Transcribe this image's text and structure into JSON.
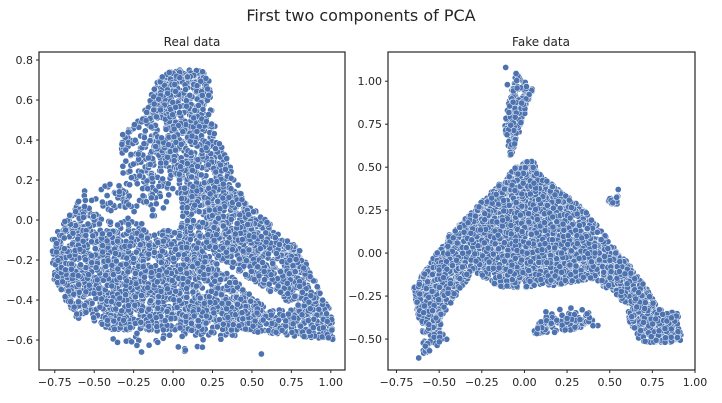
{
  "title": "First two components of PCA",
  "chart_data": [
    {
      "type": "scatter",
      "title": "Real data",
      "xlabel": "",
      "ylabel": "",
      "xlim": [
        -0.85,
        1.09
      ],
      "ylim": [
        -0.75,
        0.84
      ],
      "xticks": [
        -0.75,
        -0.5,
        -0.25,
        0.0,
        0.25,
        0.5,
        0.75,
        1.0
      ],
      "xtick_labels": [
        "−0.75",
        "−0.50",
        "−0.25",
        "0.00",
        "0.25",
        "0.50",
        "0.75",
        "1.00"
      ],
      "yticks": [
        -0.6,
        -0.4,
        -0.2,
        0.0,
        0.2,
        0.4,
        0.6,
        0.8
      ],
      "ytick_labels": [
        "−0.6",
        "−0.4",
        "−0.2",
        "0.0",
        "0.2",
        "0.4",
        "0.6",
        "0.8"
      ],
      "grid": false,
      "point_color": "#4c72b0",
      "regions": [
        {
          "points": [
            [
              -0.77,
              -0.1
            ],
            [
              -0.6,
              0.1
            ],
            [
              -0.45,
              0.0
            ],
            [
              -0.45,
              -0.35
            ],
            [
              -0.6,
              -0.5
            ],
            [
              -0.76,
              -0.3
            ]
          ],
          "density": 0.95
        },
        {
          "points": [
            [
              -0.62,
              -0.25
            ],
            [
              -0.55,
              -0.05
            ],
            [
              0.05,
              -0.05
            ],
            [
              0.6,
              -0.45
            ],
            [
              1.0,
              -0.45
            ],
            [
              1.02,
              -0.6
            ],
            [
              0.4,
              -0.55
            ],
            [
              -0.4,
              -0.55
            ],
            [
              -0.62,
              -0.45
            ]
          ],
          "density": 0.95
        },
        {
          "points": [
            [
              -0.1,
              0.7
            ],
            [
              0.0,
              0.75
            ],
            [
              0.22,
              0.75
            ],
            [
              0.25,
              0.55
            ],
            [
              0.05,
              0.2
            ],
            [
              -0.1,
              0.3
            ],
            [
              -0.18,
              0.55
            ]
          ],
          "density": 0.95
        },
        {
          "points": [
            [
              0.05,
              0.3
            ],
            [
              0.25,
              0.5
            ],
            [
              0.45,
              0.1
            ],
            [
              0.8,
              -0.15
            ],
            [
              1.0,
              -0.45
            ],
            [
              0.8,
              -0.45
            ],
            [
              0.3,
              -0.2
            ],
            [
              0.05,
              -0.05
            ]
          ],
          "density": 0.85
        },
        {
          "points": [
            [
              -0.32,
              0.45
            ],
            [
              -0.1,
              0.55
            ],
            [
              0.1,
              0.2
            ],
            [
              -0.1,
              0.0
            ],
            [
              -0.35,
              0.1
            ]
          ],
          "density": 0.35
        },
        {
          "points": [
            [
              -0.6,
              0.15
            ],
            [
              -0.3,
              0.2
            ],
            [
              -0.1,
              -0.2
            ],
            [
              -0.4,
              -0.3
            ]
          ],
          "density": 0.25
        },
        {
          "points": [
            [
              -0.45,
              -0.6
            ],
            [
              0.1,
              -0.5
            ],
            [
              0.55,
              -0.55
            ],
            [
              0.0,
              -0.68
            ],
            [
              -0.3,
              -0.62
            ]
          ],
          "density": 0.2
        }
      ],
      "extra_points": [
        [
          -0.2,
          -0.66
        ],
        [
          0.56,
          -0.67
        ],
        [
          -0.12,
          0.58
        ],
        [
          -0.3,
          0.35
        ],
        [
          0.12,
          0.42
        ]
      ],
      "seed": 11,
      "n_points": 4200
    },
    {
      "type": "scatter",
      "title": "Fake data",
      "xlabel": "",
      "ylabel": "",
      "xlim": [
        -0.8,
        1.0
      ],
      "ylim": [
        -0.68,
        1.17
      ],
      "xticks": [
        -0.75,
        -0.5,
        -0.25,
        0.0,
        0.25,
        0.5,
        0.75,
        1.0
      ],
      "xtick_labels": [
        "−0.75",
        "−0.50",
        "−0.25",
        "0.00",
        "0.25",
        "0.50",
        "0.75",
        "1.00"
      ],
      "yticks": [
        -0.5,
        -0.25,
        0.0,
        0.25,
        0.5,
        0.75,
        1.0
      ],
      "ytick_labels": [
        "−0.50",
        "−0.25",
        "0.00",
        "0.25",
        "0.50",
        "0.75",
        "1.00"
      ],
      "grid": false,
      "point_color": "#4c72b0",
      "regions": [
        {
          "points": [
            [
              -0.65,
              -0.2
            ],
            [
              -0.45,
              0.1
            ],
            [
              -0.2,
              0.35
            ],
            [
              -0.05,
              0.5
            ],
            [
              0.05,
              0.55
            ],
            [
              0.1,
              0.45
            ],
            [
              0.35,
              0.25
            ],
            [
              0.6,
              -0.05
            ],
            [
              0.82,
              -0.35
            ],
            [
              0.92,
              -0.48
            ],
            [
              0.75,
              -0.5
            ],
            [
              0.55,
              -0.25
            ],
            [
              0.4,
              -0.15
            ],
            [
              0.1,
              -0.2
            ],
            [
              -0.15,
              -0.2
            ],
            [
              -0.3,
              -0.1
            ],
            [
              -0.4,
              -0.25
            ],
            [
              -0.55,
              -0.45
            ],
            [
              -0.62,
              -0.4
            ]
          ],
          "density": 0.97
        },
        {
          "points": [
            [
              -0.08,
              0.55
            ],
            [
              0.05,
              0.95
            ],
            [
              -0.05,
              1.05
            ],
            [
              -0.12,
              0.75
            ]
          ],
          "density": 0.75
        },
        {
          "points": [
            [
              0.6,
              -0.3
            ],
            [
              0.9,
              -0.35
            ],
            [
              0.92,
              -0.52
            ],
            [
              0.68,
              -0.52
            ],
            [
              0.62,
              -0.42
            ]
          ],
          "density": 0.9
        },
        {
          "points": [
            [
              0.08,
              -0.35
            ],
            [
              0.35,
              -0.3
            ],
            [
              0.45,
              -0.42
            ],
            [
              0.05,
              -0.48
            ]
          ],
          "density": 0.35
        },
        {
          "points": [
            [
              -0.6,
              -0.45
            ],
            [
              -0.5,
              -0.35
            ],
            [
              -0.45,
              -0.5
            ],
            [
              -0.6,
              -0.6
            ]
          ],
          "density": 0.4
        },
        {
          "points": [
            [
              0.48,
              0.33
            ],
            [
              0.56,
              0.35
            ],
            [
              0.55,
              0.28
            ],
            [
              0.5,
              0.28
            ]
          ],
          "density": 0.9
        }
      ],
      "extra_points": [
        [
          -0.11,
          1.08
        ],
        [
          -0.1,
          0.98
        ],
        [
          -0.62,
          -0.61
        ],
        [
          0.25,
          -0.38
        ],
        [
          0.55,
          0.37
        ]
      ],
      "seed": 29,
      "n_points": 4200
    }
  ]
}
